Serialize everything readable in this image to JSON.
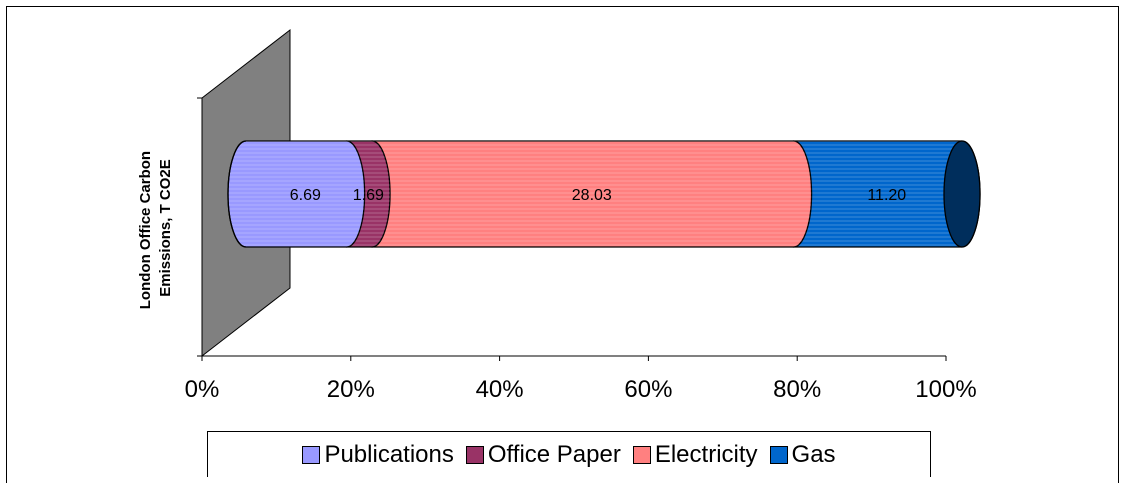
{
  "chart_data": {
    "type": "bar",
    "orientation": "horizontal",
    "stacked": "percent",
    "style": "3d-cylinder",
    "ylabel": "London Office Carbon Emissions, T CO2E",
    "x_ticks": [
      "0%",
      "20%",
      "40%",
      "60%",
      "80%",
      "100%"
    ],
    "legend_position": "bottom",
    "series": [
      {
        "name": "Publications",
        "value": 6.69,
        "label": "6.69",
        "color": "#9999ff"
      },
      {
        "name": "Office Paper",
        "value": 1.69,
        "label": "1.69",
        "color": "#993366"
      },
      {
        "name": "Electricity",
        "value": 28.03,
        "label": "28.03",
        "color": "#ff8080"
      },
      {
        "name": "Gas",
        "value": 11.2,
        "label": "11.20",
        "color": "#0066cc"
      }
    ]
  }
}
